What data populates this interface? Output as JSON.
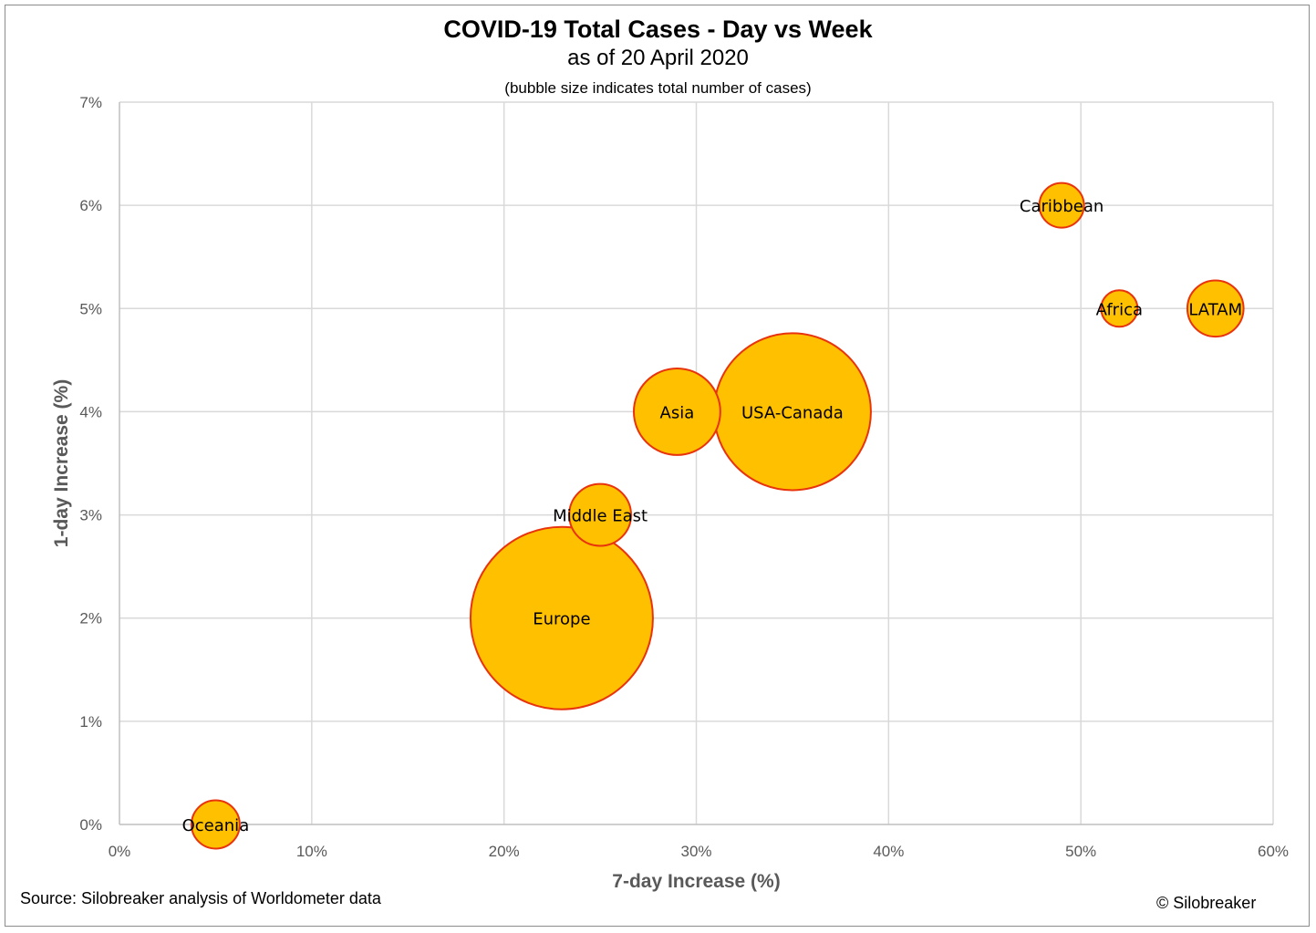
{
  "title": "COVID-19 Total Cases - Day vs Week",
  "subtitle": "as of 20 April 2020",
  "note": "(bubble size indicates total number of cases)",
  "source": "Source: Silobreaker analysis of Worldometer data",
  "copyright": "© Silobreaker",
  "colors": {
    "bubble_fill": "#FFC000",
    "bubble_stroke": "#E8330C",
    "grid": "#D9D9D9",
    "axis": "#BFBFBF"
  },
  "chart_data": {
    "type": "scatter",
    "xlabel": "7-day Increase (%)",
    "ylabel": "1-day Increase (%)",
    "xlim": [
      0,
      60
    ],
    "ylim": [
      0,
      7
    ],
    "xticks": [
      "0%",
      "10%",
      "20%",
      "30%",
      "40%",
      "50%",
      "60%"
    ],
    "yticks": [
      "0%",
      "1%",
      "2%",
      "3%",
      "4%",
      "5%",
      "6%",
      "7%"
    ],
    "grid": true,
    "points": [
      {
        "label": "Oceania",
        "x": 5,
        "y": 0,
        "size": 0.07
      },
      {
        "label": "Europe",
        "x": 23,
        "y": 2,
        "size": 1.0
      },
      {
        "label": "Middle East",
        "x": 25,
        "y": 3,
        "size": 0.115
      },
      {
        "label": "Asia",
        "x": 29,
        "y": 4,
        "size": 0.225
      },
      {
        "label": "USA-Canada",
        "x": 35,
        "y": 4,
        "size": 0.74
      },
      {
        "label": "Caribbean",
        "x": 49,
        "y": 6,
        "size": 0.06
      },
      {
        "label": "Africa",
        "x": 52,
        "y": 5,
        "size": 0.04
      },
      {
        "label": "LATAM",
        "x": 57,
        "y": 5,
        "size": 0.095
      }
    ]
  }
}
